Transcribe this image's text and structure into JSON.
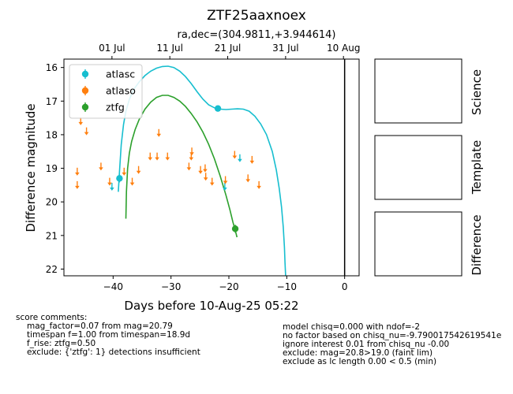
{
  "chart_data": {
    "type": "scatter",
    "title": "ZTF25aaxnoex",
    "subtitle": "ra,dec=(304.9811,+3.944614)",
    "xlabel": "Days before 10-Aug-25 05:22",
    "ylabel": "Difference magnitude",
    "xlim": [
      -48.5,
      2.5
    ],
    "ylim": [
      22.2,
      15.75
    ],
    "y_inverted": true,
    "x_ticks": [
      -40,
      -30,
      -20,
      -10,
      0
    ],
    "x_tick_labels": [
      "−40",
      "−30",
      "−20",
      "−10",
      "0"
    ],
    "y_ticks": [
      16,
      17,
      18,
      19,
      20,
      21,
      22
    ],
    "y_tick_labels": [
      "16",
      "17",
      "18",
      "19",
      "20",
      "21",
      "22"
    ],
    "top_axis": {
      "ticks": [
        -40.2,
        -30.2,
        -20.2,
        -10.2,
        -0.2
      ],
      "labels": [
        "01 Jul",
        "11 Jul",
        "21 Jul",
        "31 Jul",
        "10 Aug"
      ]
    },
    "vline_x": 0,
    "legend": {
      "position": "top-left",
      "entries": [
        {
          "label": "atlasc",
          "color": "#17becf"
        },
        {
          "label": "atlaso",
          "color": "#ff7f0e"
        },
        {
          "label": "ztfg",
          "color": "#2ca02c"
        }
      ]
    },
    "series": [
      {
        "name": "atlasc",
        "color": "#17becf",
        "detections": [
          {
            "x": -38.9,
            "y": 19.3,
            "err": 0.12
          },
          {
            "x": -21.9,
            "y": 17.22,
            "err": 0.08
          }
        ],
        "upper_limits": [
          {
            "x": -40.2,
            "y": 19.55
          },
          {
            "x": -20.7,
            "y": 19.55
          },
          {
            "x": -18.1,
            "y": 18.7
          }
        ],
        "model": {
          "x": [
            -39.1,
            -38.9,
            -38.6,
            -38.2,
            -37.8,
            -37.2,
            -36.5,
            -35.5,
            -34.5,
            -33.5,
            -32.5,
            -31.5,
            -30.5,
            -29.5,
            -28.5,
            -27.5,
            -26.5,
            -25.5,
            -24.5,
            -23.5,
            -22.5,
            -21.5,
            -20.5,
            -19.5,
            -18.5,
            -17.5,
            -16.5,
            -15.5,
            -14.5,
            -13.5,
            -12.5,
            -11.8,
            -11.3,
            -10.9,
            -10.6,
            -10.4,
            -10.3,
            -10.2
          ],
          "y": [
            19.7,
            19.1,
            18.3,
            17.7,
            17.3,
            16.95,
            16.67,
            16.43,
            16.24,
            16.11,
            16.02,
            15.97,
            15.96,
            16.0,
            16.11,
            16.27,
            16.48,
            16.72,
            16.94,
            17.11,
            17.2,
            17.24,
            17.25,
            17.24,
            17.23,
            17.24,
            17.3,
            17.45,
            17.68,
            18.0,
            18.5,
            19.05,
            19.6,
            20.15,
            20.75,
            21.35,
            21.8,
            22.2
          ]
        }
      },
      {
        "name": "atlaso",
        "color": "#ff7f0e",
        "detections": [],
        "upper_limits": [
          {
            "x": -46.2,
            "y": 19.1
          },
          {
            "x": -46.2,
            "y": 19.5
          },
          {
            "x": -45.6,
            "y": 17.6
          },
          {
            "x": -44.6,
            "y": 17.9
          },
          {
            "x": -42.1,
            "y": 18.95
          },
          {
            "x": -40.6,
            "y": 19.4
          },
          {
            "x": -38.1,
            "y": 19.1
          },
          {
            "x": -36.7,
            "y": 19.4
          },
          {
            "x": -35.6,
            "y": 19.05
          },
          {
            "x": -33.6,
            "y": 18.65
          },
          {
            "x": -32.4,
            "y": 18.65
          },
          {
            "x": -32.1,
            "y": 17.95
          },
          {
            "x": -30.6,
            "y": 18.65
          },
          {
            "x": -26.9,
            "y": 18.95
          },
          {
            "x": -26.5,
            "y": 18.65
          },
          {
            "x": -26.4,
            "y": 18.5
          },
          {
            "x": -24.9,
            "y": 19.05
          },
          {
            "x": -24.1,
            "y": 19.0
          },
          {
            "x": -24.0,
            "y": 19.25
          },
          {
            "x": -22.9,
            "y": 19.4
          },
          {
            "x": -20.6,
            "y": 19.35
          },
          {
            "x": -19.0,
            "y": 18.6
          },
          {
            "x": -16.7,
            "y": 19.3
          },
          {
            "x": -16.0,
            "y": 18.75
          },
          {
            "x": -14.8,
            "y": 19.5
          }
        ]
      },
      {
        "name": "ztfg",
        "color": "#2ca02c",
        "detections": [
          {
            "x": -18.9,
            "y": 20.8,
            "err": 0.12
          }
        ],
        "upper_limits": [],
        "model": {
          "x": [
            -37.8,
            -37.7,
            -37.5,
            -37.2,
            -36.8,
            -36.2,
            -35.5,
            -34.5,
            -33.5,
            -32.5,
            -31.5,
            -30.5,
            -29.5,
            -28.5,
            -27.5,
            -26.5,
            -25.5,
            -24.5,
            -23.5,
            -22.5,
            -21.5,
            -20.5,
            -19.8,
            -19.3,
            -18.9,
            -18.6
          ],
          "y": [
            20.5,
            19.7,
            19.0,
            18.55,
            18.2,
            17.85,
            17.55,
            17.24,
            17.03,
            16.89,
            16.83,
            16.83,
            16.89,
            17.0,
            17.16,
            17.37,
            17.62,
            17.92,
            18.28,
            18.72,
            19.23,
            19.8,
            20.25,
            20.6,
            20.85,
            21.05
          ]
        }
      }
    ]
  },
  "side_panels": [
    {
      "label": "Science"
    },
    {
      "label": "Template"
    },
    {
      "label": "Difference"
    }
  ],
  "score_comments": {
    "title": "score comments:",
    "left_lines": [
      "mag_factor=0.07 from mag=20.79",
      "timespan f=1.00 from timespan=18.9d",
      "f_rise: ztfg=0.50",
      "exclude: {'ztfg': 1} detections insufficient"
    ],
    "right_lines": [
      "model chisq=0.000 with ndof=-2",
      "no factor based on chisq_nu=-9.790017542619541e",
      "ignore interest 0.01 from chisq_nu -0.00",
      "exclude: mag=20.8>19.0 (faint lim)",
      "exclude as lc length 0.00 < 0.5 (min)"
    ]
  }
}
